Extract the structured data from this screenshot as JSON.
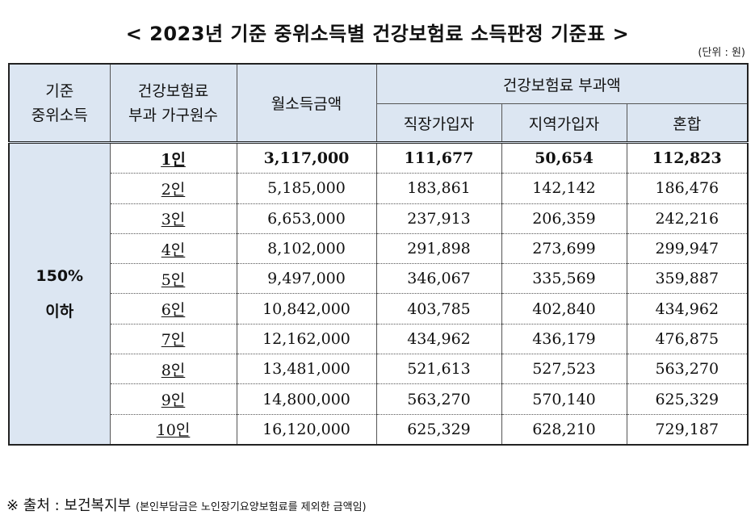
{
  "title": "< 2023년 기준 중위소득별 건강보험료 소득판정 기준표 >",
  "unit": "(단위 : 원)",
  "headers": {
    "median": "기준\n중위소득",
    "household": "건강보험료\n부과 가구원수",
    "income": "월소득금액",
    "premium": "건강보험료 부과액",
    "employee": "직장가입자",
    "regional": "지역가입자",
    "mixed": "혼합"
  },
  "group_label": "150%\n이하",
  "rows": [
    {
      "size": "1인",
      "income": "3,117,000",
      "employee": "111,677",
      "regional": "50,654",
      "mixed": "112,823"
    },
    {
      "size": "2인",
      "income": "5,185,000",
      "employee": "183,861",
      "regional": "142,142",
      "mixed": "186,476"
    },
    {
      "size": "3인",
      "income": "6,653,000",
      "employee": "237,913",
      "regional": "206,359",
      "mixed": "242,216"
    },
    {
      "size": "4인",
      "income": "8,102,000",
      "employee": "291,898",
      "regional": "273,699",
      "mixed": "299,947"
    },
    {
      "size": "5인",
      "income": "9,497,000",
      "employee": "346,067",
      "regional": "335,569",
      "mixed": "359,887"
    },
    {
      "size": "6인",
      "income": "10,842,000",
      "employee": "403,785",
      "regional": "402,840",
      "mixed": "434,962"
    },
    {
      "size": "7인",
      "income": "12,162,000",
      "employee": "434,962",
      "regional": "436,179",
      "mixed": "476,875"
    },
    {
      "size": "8인",
      "income": "13,481,000",
      "employee": "521,613",
      "regional": "527,523",
      "mixed": "563,270"
    },
    {
      "size": "9인",
      "income": "14,800,000",
      "employee": "563,270",
      "regional": "570,140",
      "mixed": "625,329"
    },
    {
      "size": "10인",
      "income": "16,120,000",
      "employee": "625,329",
      "regional": "628,210",
      "mixed": "729,187"
    }
  ],
  "footer": {
    "source": "※ 출처 : 보건복지부",
    "note": "(본인부담금은 노인장기요양보험료를 제외한 금액임)"
  }
}
